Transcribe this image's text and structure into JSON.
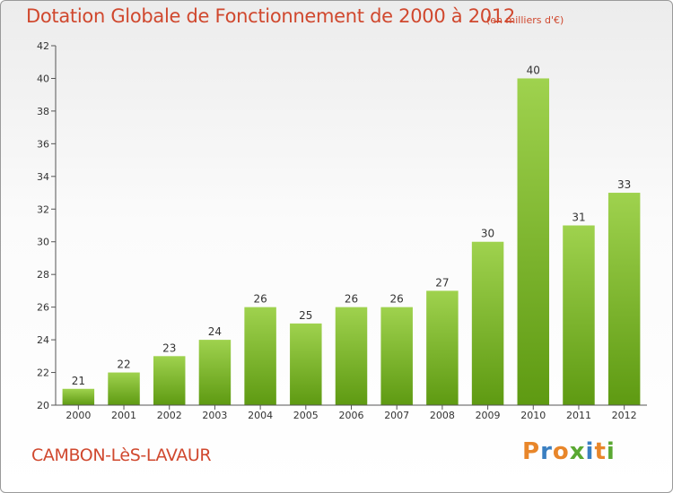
{
  "header": {
    "title": "Dotation Globale de Fonctionnement de 2000 à 2012",
    "subtitle": "(en milliers d'€)"
  },
  "footer": {
    "commune": "CAMBON-LèS-LAVAUR",
    "logo_text": "Proxiti",
    "logo_colors": [
      "#e8862a",
      "#3a7fc1",
      "#e8862a",
      "#5aa832",
      "#3a7fc1",
      "#e8862a",
      "#5aa832"
    ]
  },
  "chart_data": {
    "type": "bar",
    "categories": [
      "2000",
      "2001",
      "2002",
      "2003",
      "2004",
      "2005",
      "2006",
      "2007",
      "2008",
      "2009",
      "2010",
      "2011",
      "2012"
    ],
    "values": [
      21,
      22,
      23,
      24,
      26,
      25,
      26,
      26,
      27,
      30,
      40,
      31,
      33
    ],
    "ylim": [
      20,
      42
    ],
    "yticks": [
      20,
      22,
      24,
      26,
      28,
      30,
      32,
      34,
      36,
      38,
      40,
      42
    ],
    "grid": false,
    "colors": {
      "bar_top": "#9fd24e",
      "bar_bottom": "#5e9a12",
      "axis": "#555555"
    }
  }
}
